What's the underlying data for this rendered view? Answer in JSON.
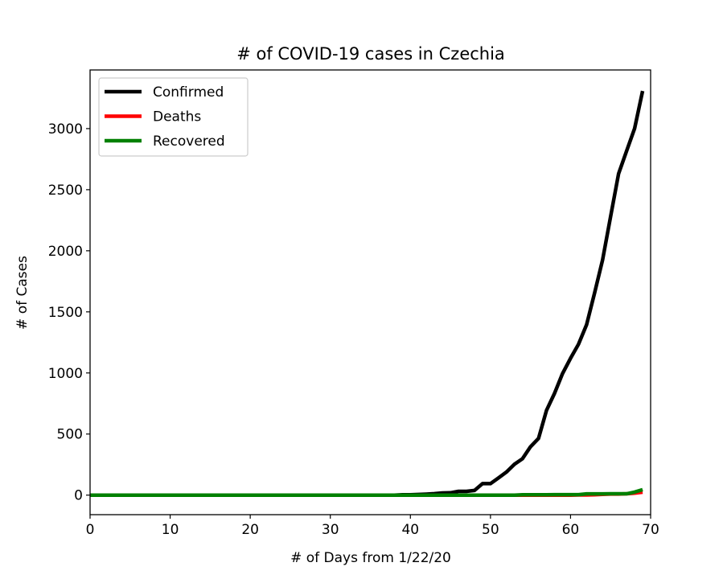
{
  "chart_data": {
    "type": "line",
    "title": "# of COVID-19 cases in Czechia",
    "xlabel": "# of Days from 1/22/20",
    "ylabel": "# of Cases",
    "xlim": [
      0,
      70
    ],
    "ylim": [
      -160,
      3480
    ],
    "xticks": [
      0,
      10,
      20,
      30,
      40,
      50,
      60,
      70
    ],
    "yticks": [
      0,
      500,
      1000,
      1500,
      2000,
      2500,
      3000
    ],
    "grid": false,
    "legend_position": "upper-left",
    "x": [
      0,
      1,
      2,
      3,
      4,
      5,
      6,
      7,
      8,
      9,
      10,
      11,
      12,
      13,
      14,
      15,
      16,
      17,
      18,
      19,
      20,
      21,
      22,
      23,
      24,
      25,
      26,
      27,
      28,
      29,
      30,
      31,
      32,
      33,
      34,
      35,
      36,
      37,
      38,
      39,
      40,
      41,
      42,
      43,
      44,
      45,
      46,
      47,
      48,
      49,
      50,
      51,
      52,
      53,
      54,
      55,
      56,
      57,
      58,
      59,
      60,
      61,
      62,
      63,
      64,
      65,
      66,
      67,
      68,
      69
    ],
    "series": [
      {
        "name": "Confirmed",
        "color": "#000000",
        "values": [
          0,
          0,
          0,
          0,
          0,
          0,
          0,
          0,
          0,
          0,
          0,
          0,
          0,
          0,
          0,
          0,
          0,
          0,
          0,
          0,
          0,
          0,
          0,
          0,
          0,
          0,
          0,
          0,
          0,
          0,
          0,
          0,
          0,
          0,
          0,
          0,
          0,
          0,
          0,
          3,
          3,
          5,
          8,
          12,
          18,
          19,
          31,
          31,
          38,
          94,
          94,
          141,
          189,
          253,
          298,
          396,
          464,
          694,
          833,
          995,
          1120,
          1236,
          1394,
          1654,
          1925,
          2279,
          2631,
          2817,
          3001,
          3308
        ]
      },
      {
        "name": "Deaths",
        "color": "#ff0000",
        "values": [
          0,
          0,
          0,
          0,
          0,
          0,
          0,
          0,
          0,
          0,
          0,
          0,
          0,
          0,
          0,
          0,
          0,
          0,
          0,
          0,
          0,
          0,
          0,
          0,
          0,
          0,
          0,
          0,
          0,
          0,
          0,
          0,
          0,
          0,
          0,
          0,
          0,
          0,
          0,
          0,
          0,
          0,
          0,
          0,
          0,
          0,
          0,
          0,
          0,
          0,
          0,
          0,
          0,
          0,
          0,
          0,
          0,
          0,
          0,
          0,
          0,
          1,
          1,
          3,
          6,
          9,
          9,
          11,
          16,
          24
        ]
      },
      {
        "name": "Recovered",
        "color": "#008000",
        "values": [
          0,
          0,
          0,
          0,
          0,
          0,
          0,
          0,
          0,
          0,
          0,
          0,
          0,
          0,
          0,
          0,
          0,
          0,
          0,
          0,
          0,
          0,
          0,
          0,
          0,
          0,
          0,
          0,
          0,
          0,
          0,
          0,
          0,
          0,
          0,
          0,
          0,
          0,
          0,
          0,
          0,
          0,
          0,
          0,
          0,
          0,
          0,
          0,
          0,
          0,
          0,
          0,
          0,
          0,
          3,
          3,
          3,
          3,
          4,
          4,
          4,
          4,
          10,
          10,
          10,
          11,
          11,
          11,
          25,
          45
        ]
      }
    ]
  }
}
